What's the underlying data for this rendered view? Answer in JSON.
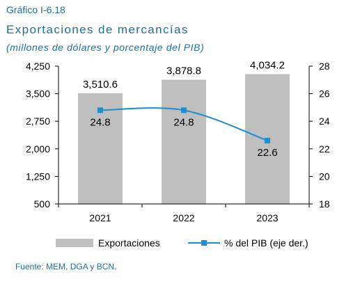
{
  "header": {
    "label": "Gráfico I-6.18",
    "title": "Exportaciones de mercancías",
    "subtitle": "(millones de dólares y porcentaje del PIB)"
  },
  "source": "Fuente: MEM, DGA y BCN.",
  "colors": {
    "bar": "#bfbfbf",
    "line": "#1b8fd1",
    "title": "#1d6f9e"
  },
  "chart_data": {
    "type": "bar",
    "categories": [
      "2021",
      "2022",
      "2023"
    ],
    "series": [
      {
        "name": "Exportaciones",
        "type": "bar",
        "axis": "left",
        "values": [
          3510.6,
          3878.8,
          4034.2
        ],
        "labels": [
          "3,510.6",
          "3,878.8",
          "4,034.2"
        ]
      },
      {
        "name": "% del PIB (eje der.)",
        "type": "line",
        "axis": "right",
        "values": [
          24.8,
          24.8,
          22.6
        ],
        "labels": [
          "24.8",
          "24.8",
          "22.6"
        ]
      }
    ],
    "y_left": {
      "ylim": [
        500,
        4250
      ],
      "ticks": [
        500,
        1250,
        2000,
        2750,
        3500,
        4250
      ],
      "tick_labels": [
        "500",
        "1,250",
        "2,000",
        "2,750",
        "3,500",
        "4,250"
      ]
    },
    "y_right": {
      "ylim": [
        18,
        28
      ],
      "ticks": [
        18,
        20,
        22,
        24,
        26,
        28
      ],
      "tick_labels": [
        "18",
        "20",
        "22",
        "24",
        "26",
        "28"
      ]
    },
    "legend": {
      "placement": "bottom"
    },
    "grid": false
  }
}
